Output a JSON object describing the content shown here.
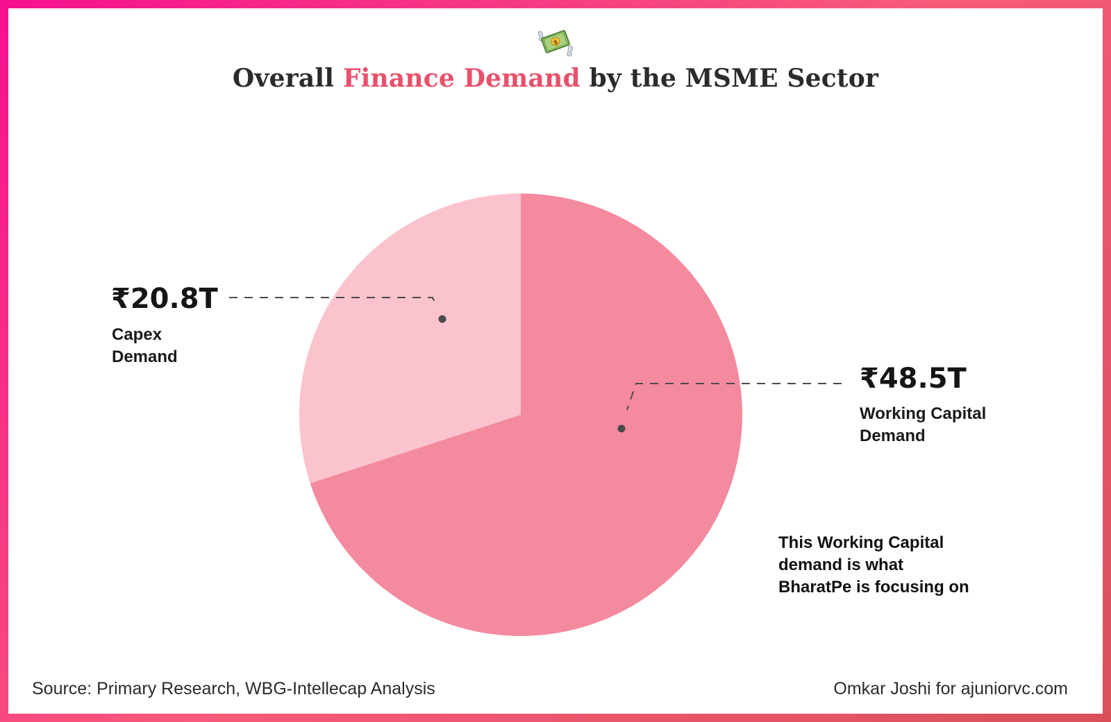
{
  "title": {
    "prefix": "Overall ",
    "highlight": "Finance Demand",
    "suffix": " by the MSME Sector"
  },
  "colors": {
    "accent": "#e8506b",
    "slice_capex": "#fbc3cd",
    "slice_working": "#f48a9e",
    "leader": "#4a4a4a"
  },
  "chart_data": {
    "type": "pie",
    "title": "Overall Finance Demand by the MSME Sector",
    "slices": [
      {
        "label": "Capex Demand",
        "value": 20.8,
        "display": "₹20.8T",
        "label_lines": [
          "Capex",
          "Demand"
        ]
      },
      {
        "label": "Working Capital Demand",
        "value": 48.5,
        "display": "₹48.5T",
        "label_lines": [
          "Working Capital",
          "Demand"
        ]
      }
    ],
    "units": "₹ Trillion"
  },
  "annotation": {
    "lines": [
      "This Working Capital",
      "demand is what",
      "BharatPe is focusing on"
    ]
  },
  "footer": {
    "source": "Source: Primary Research, WBG-Intellecap Analysis",
    "credit": "Omkar Joshi for ajuniorvc.com"
  },
  "icons": {
    "header": "money-with-wings-icon"
  }
}
